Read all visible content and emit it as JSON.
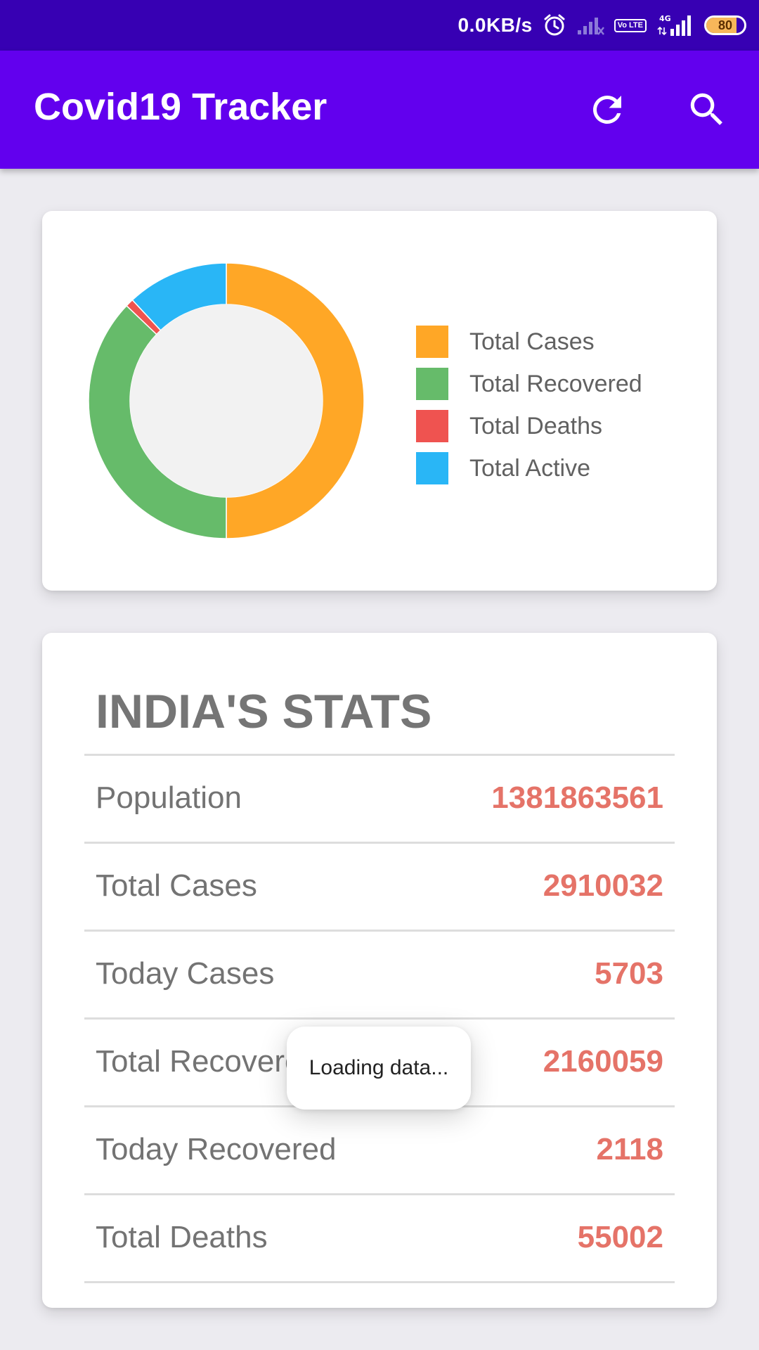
{
  "status_bar": {
    "net_speed": "0.0KB/s",
    "network": "4G",
    "volte": "Vo LTE",
    "battery": "80",
    "battery_level": 0.8,
    "icons": [
      "alarm-icon",
      "signal-muted-icon",
      "volte-icon",
      "signal-4g-icon",
      "battery-icon"
    ]
  },
  "app_bar": {
    "title": "Covid19 Tracker",
    "actions": [
      "refresh-icon",
      "search-icon"
    ]
  },
  "chart_data": {
    "type": "pie",
    "categories": [
      "Total Cases",
      "Total Recovered",
      "Total Deaths",
      "Total Active"
    ],
    "values": [
      2910032,
      2160059,
      55002,
      694971
    ],
    "colors": [
      "#ffa726",
      "#66bb6a",
      "#ef5350",
      "#29b6f6"
    ],
    "legend_position": "right"
  },
  "stats": {
    "title": "INDIA'S STATS",
    "rows": [
      {
        "label": "Population",
        "value": "1381863561"
      },
      {
        "label": "Total Cases",
        "value": "2910032"
      },
      {
        "label": "Today Cases",
        "value": "5703"
      },
      {
        "label": "Total Recovered",
        "value": "2160059"
      },
      {
        "label": "Today Recovered",
        "value": "2118"
      },
      {
        "label": "Total Deaths",
        "value": "55002"
      }
    ]
  },
  "toast": {
    "message": "Loading data..."
  }
}
